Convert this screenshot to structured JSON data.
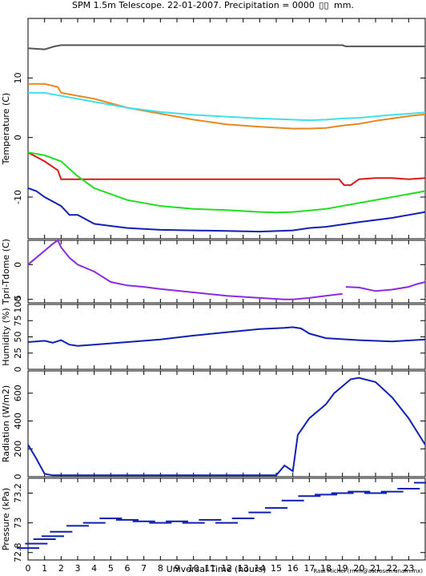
{
  "title": "SPM 1.5m Telescope. 22-01-2007. Precipitation = 0000",
  "title_unit": "mm.",
  "credit": "Raul Michel (rmm@astrosen.unam.mx)",
  "colors": {
    "gray": "#555555",
    "orange": "#e8871e",
    "cyan": "#3fe0e8",
    "red": "#d81a1a",
    "green": "#22dd22",
    "blue": "#1020b0",
    "purple": "#8a2be2"
  },
  "chart_data": [
    {
      "type": "line",
      "ylabel": "Temperature (C)",
      "xlim": [
        0,
        24
      ],
      "ylim": [
        -17,
        20
      ],
      "yticks": [
        -10,
        0,
        10
      ],
      "yticks_labels": [
        "-10",
        "0",
        "10"
      ],
      "series": [
        {
          "color": "gray",
          "x": [
            0,
            1,
            1.6,
            2,
            6,
            10,
            14,
            19,
            19.2,
            24
          ],
          "y": [
            15,
            14.8,
            15.3,
            15.5,
            15.5,
            15.5,
            15.5,
            15.5,
            15.3,
            15.3
          ]
        },
        {
          "color": "orange",
          "x": [
            0,
            1,
            1.8,
            2,
            3,
            4,
            6,
            8,
            10,
            12,
            14,
            16,
            17,
            18,
            19,
            20,
            21,
            22,
            23,
            24
          ],
          "y": [
            9,
            9,
            8.5,
            7.5,
            7,
            6.5,
            5,
            4,
            3,
            2.2,
            1.8,
            1.5,
            1.5,
            1.6,
            2,
            2.3,
            2.8,
            3.2,
            3.6,
            3.9
          ]
        },
        {
          "color": "cyan",
          "x": [
            0,
            1,
            2,
            4,
            6,
            8,
            10,
            12,
            14,
            16,
            17,
            18,
            19,
            20,
            22,
            24
          ],
          "y": [
            7.5,
            7.5,
            7,
            6,
            5,
            4.3,
            3.8,
            3.5,
            3.2,
            3,
            2.9,
            3,
            3.2,
            3.3,
            3.8,
            4.2
          ]
        },
        {
          "color": "red",
          "x": [
            0,
            1,
            1.8,
            2,
            3,
            10,
            18.8,
            19.1,
            19.5,
            20,
            21,
            22,
            23,
            24
          ],
          "y": [
            -2.5,
            -4,
            -5.5,
            -7,
            -7,
            -7,
            -7,
            -8,
            -8,
            -7,
            -6.8,
            -6.8,
            -7,
            -6.8
          ]
        },
        {
          "color": "green",
          "x": [
            0,
            1,
            2,
            3,
            4,
            6,
            8,
            10,
            12,
            14,
            15,
            16,
            18,
            20,
            22,
            24
          ],
          "y": [
            -2.5,
            -3,
            -4,
            -6.5,
            -8.5,
            -10.5,
            -11.5,
            -12,
            -12.2,
            -12.5,
            -12.6,
            -12.5,
            -12,
            -11,
            -10,
            -9
          ]
        },
        {
          "color": "blue",
          "x": [
            0,
            0.5,
            1,
            2,
            2.5,
            3,
            4,
            6,
            8,
            10,
            12,
            14,
            16,
            17,
            18,
            20,
            22,
            24
          ],
          "y": [
            -8.5,
            -9,
            -10,
            -11.5,
            -13,
            -13,
            -14.5,
            -15.2,
            -15.5,
            -15.6,
            -15.7,
            -15.8,
            -15.6,
            -15.2,
            -15,
            -14.2,
            -13.5,
            -12.5
          ]
        }
      ]
    },
    {
      "type": "line",
      "ylabel": "Tpri-Tdome (C)",
      "xlim": [
        0,
        24
      ],
      "ylim": [
        -5.5,
        3.5
      ],
      "yticks": [
        -5,
        0
      ],
      "yticks_labels": [
        "-5",
        "0"
      ],
      "series": [
        {
          "color": "purple",
          "x": [
            0,
            0.5,
            1,
            1.5,
            1.8,
            2,
            2.5,
            3,
            4,
            5,
            6,
            7,
            8,
            10,
            12,
            14,
            15.5,
            16,
            17,
            18,
            19
          ],
          "y": [
            0,
            1,
            2,
            3,
            3.5,
            2.5,
            1,
            0,
            -1,
            -2.5,
            -3,
            -3.2,
            -3.5,
            -4,
            -4.5,
            -4.8,
            -5,
            -5,
            -4.8,
            -4.5,
            -4.2
          ]
        },
        {
          "color": "purple",
          "x": [
            19.2,
            20,
            21,
            22,
            23,
            23.5,
            24
          ],
          "y": [
            -3.2,
            -3.3,
            -3.8,
            -3.6,
            -3.2,
            -2.8,
            -2.5
          ]
        }
      ]
    },
    {
      "type": "line",
      "ylabel": "Humidity (%)",
      "xlim": [
        0,
        24
      ],
      "ylim": [
        0,
        100
      ],
      "yticks": [
        0,
        25,
        50,
        75,
        100
      ],
      "yticks_labels": [
        "0",
        "25",
        "50",
        "75",
        "100"
      ],
      "series": [
        {
          "color": "blue",
          "x": [
            0,
            1,
            1.5,
            2,
            2.5,
            3,
            3.5,
            4,
            6,
            8,
            10,
            12,
            14,
            15.5,
            16,
            16.5,
            17,
            18,
            20,
            22,
            24
          ],
          "y": [
            42,
            44,
            41,
            45,
            38,
            36,
            37,
            38,
            42,
            46,
            52,
            57,
            62,
            64,
            65,
            63,
            55,
            48,
            45,
            43,
            46
          ]
        }
      ]
    },
    {
      "type": "line",
      "ylabel": "Radiation (W/m2)",
      "xlim": [
        0,
        24
      ],
      "ylim": [
        0,
        760
      ],
      "yticks": [
        0,
        200,
        400,
        600
      ],
      "yticks_labels": [
        "0",
        "200",
        "400",
        "600"
      ],
      "series": [
        {
          "color": "blue",
          "x": [
            0,
            0.5,
            1,
            1.5,
            4,
            8,
            12,
            15,
            15.5,
            16,
            16.3,
            17,
            18,
            18.5,
            19,
            19.5,
            20,
            21,
            22,
            23,
            24
          ],
          "y": [
            230,
            130,
            20,
            10,
            10,
            10,
            10,
            10,
            80,
            40,
            300,
            420,
            520,
            600,
            650,
            700,
            710,
            680,
            570,
            420,
            230
          ]
        }
      ]
    },
    {
      "type": "scatter",
      "ylabel": "Pressure (kPa)",
      "xlim": [
        0,
        24
      ],
      "ylim": [
        72.75,
        73.3
      ],
      "yticks": [
        72.8,
        73,
        73.2
      ],
      "yticks_labels": [
        "72.8",
        "73",
        "73.2"
      ],
      "series": [
        {
          "color": "blue",
          "x": [
            0,
            0.5,
            1,
            1.5,
            2,
            3,
            4,
            5,
            6,
            7,
            8,
            9,
            10,
            11,
            12,
            13,
            14,
            15,
            16,
            17,
            18,
            19,
            20,
            21,
            22,
            23,
            24
          ],
          "y": [
            72.83,
            72.86,
            72.89,
            72.91,
            72.94,
            72.98,
            73.0,
            73.03,
            73.02,
            73.01,
            73.0,
            73.01,
            73.0,
            73.02,
            73.0,
            73.03,
            73.07,
            73.1,
            73.15,
            73.18,
            73.19,
            73.2,
            73.21,
            73.2,
            73.21,
            73.23,
            73.27
          ]
        }
      ]
    }
  ],
  "x_axis": {
    "label": "Universal Time (hours)",
    "ticks": [
      0,
      1,
      2,
      3,
      4,
      5,
      6,
      7,
      8,
      9,
      10,
      11,
      12,
      13,
      14,
      15,
      16,
      17,
      18,
      19,
      20,
      21,
      22,
      23
    ],
    "tick_labels": [
      "0",
      "1",
      "2",
      "3",
      "4",
      "5",
      "6",
      "7",
      "8",
      "9",
      "10",
      "11",
      "12",
      "13",
      "14",
      "15",
      "16",
      "17",
      "18",
      "19",
      "20",
      "21",
      "22",
      "23"
    ]
  }
}
